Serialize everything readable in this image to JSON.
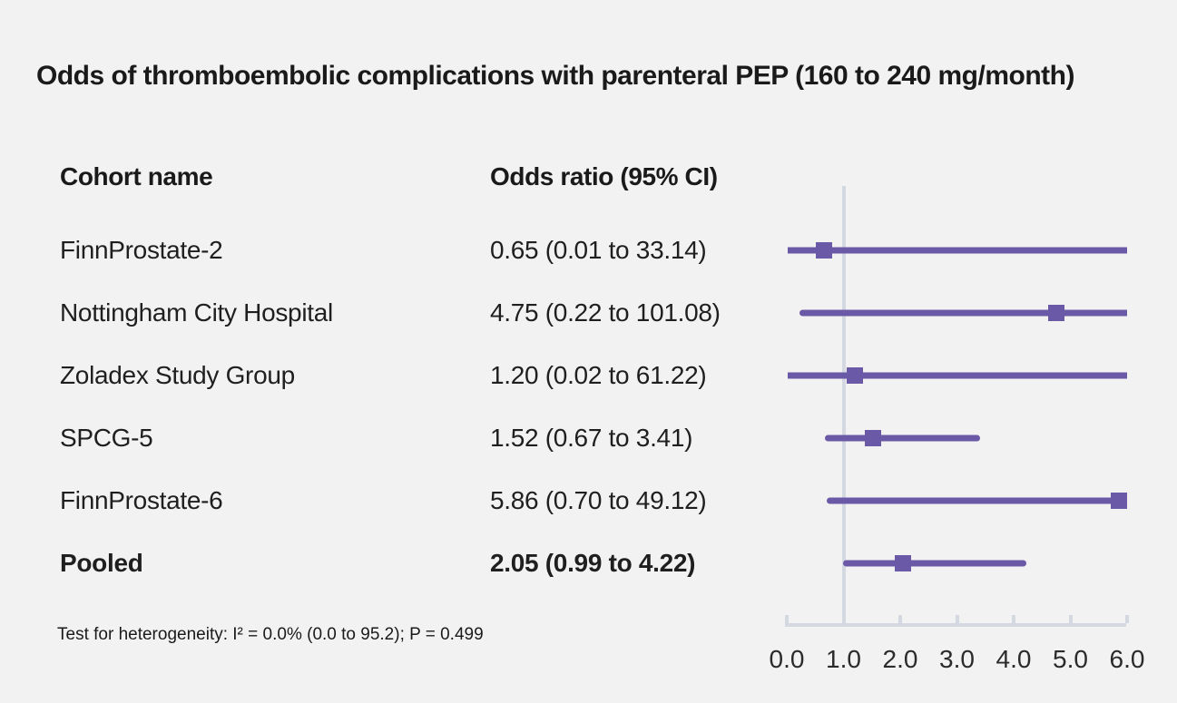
{
  "title": "Odds of thromboembolic complications with parenteral PEP (160 to 240 mg/month)",
  "table": {
    "cohort_header": "Cohort name",
    "or_header": "Odds ratio (95% CI)"
  },
  "footnote": "Test for heterogeneity: I² = 0.0% (0.0 to 95.2); P = 0.499",
  "colors": {
    "background": "#f2f2f2",
    "accent_purple": "#6a59a6",
    "axis_gray": "#d4d9e1",
    "text": "#1a1a1a"
  },
  "chart_data": {
    "type": "forest",
    "title": "Odds of thromboembolic complications with parenteral PEP (160 to 240 mg/month)",
    "xlabel": "Odds ratio",
    "xlim": [
      0.0,
      6.0
    ],
    "xticks": [
      "0.0",
      "1.0",
      "2.0",
      "3.0",
      "4.0",
      "5.0",
      "6.0"
    ],
    "xtick_values": [
      0,
      1,
      2,
      3,
      4,
      5,
      6
    ],
    "reference_line": 1.0,
    "grid": false,
    "legend": "none",
    "rows": [
      {
        "cohort": "FinnProstate-2",
        "or": 0.65,
        "ci_low": 0.01,
        "ci_high": 33.14,
        "or_label": "0.65 (0.01 to 33.14)",
        "bold": false
      },
      {
        "cohort": "Nottingham City Hospital",
        "or": 4.75,
        "ci_low": 0.22,
        "ci_high": 101.08,
        "or_label": "4.75 (0.22 to 101.08)",
        "bold": false
      },
      {
        "cohort": "Zoladex Study Group",
        "or": 1.2,
        "ci_low": 0.02,
        "ci_high": 61.22,
        "or_label": "1.20 (0.02 to 61.22)",
        "bold": false
      },
      {
        "cohort": "SPCG-5",
        "or": 1.52,
        "ci_low": 0.67,
        "ci_high": 3.41,
        "or_label": "1.52 (0.67 to 3.41)",
        "bold": false
      },
      {
        "cohort": "FinnProstate-6",
        "or": 5.86,
        "ci_low": 0.7,
        "ci_high": 49.12,
        "or_label": "5.86 (0.70 to 49.12)",
        "bold": false
      },
      {
        "cohort": "Pooled",
        "or": 2.05,
        "ci_low": 0.99,
        "ci_high": 4.22,
        "or_label": "2.05 (0.99 to 4.22)",
        "bold": true
      }
    ]
  }
}
